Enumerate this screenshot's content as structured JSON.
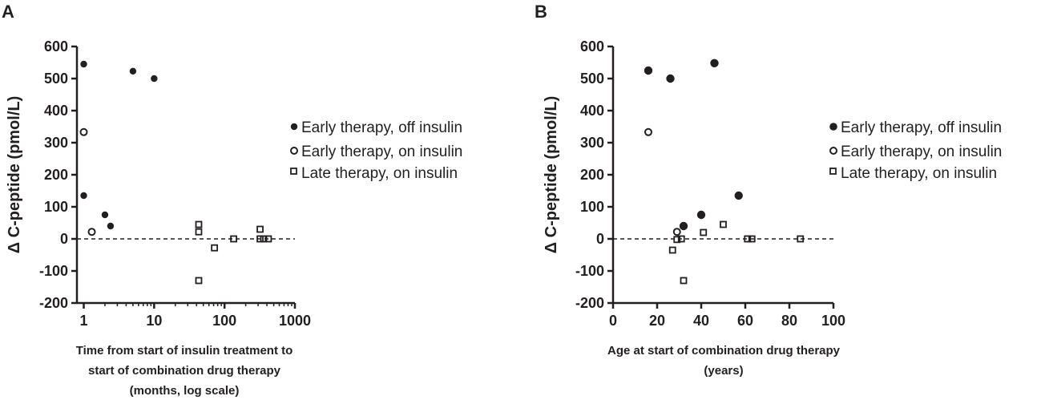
{
  "colors": {
    "ink": "#231f20",
    "background": "#ffffff"
  },
  "chart_data": [
    {
      "panel": "A",
      "type": "scatter",
      "xscale": "log",
      "xlim": [
        0.8,
        1000
      ],
      "ylim": [
        -200,
        600
      ],
      "xticks": [
        1,
        10,
        100,
        1000
      ],
      "xtick_labels": [
        "1",
        "10",
        "100",
        "1000"
      ],
      "yticks": [
        -200,
        -100,
        0,
        100,
        200,
        300,
        400,
        500,
        600
      ],
      "ytick_labels": [
        "-200",
        "-100",
        "0",
        "100",
        "200",
        "300",
        "400",
        "500",
        "600"
      ],
      "ylabel": "Δ C-peptide (pmol/L)",
      "xlabel_lines": [
        "Time from start of insulin treatment to",
        "start of combination drug therapy",
        "(months, log scale)"
      ],
      "reference_line": 0,
      "legend_position": "right",
      "series": [
        {
          "name": "Early therapy, off insulin",
          "marker": "filled-circle",
          "points": [
            [
              1,
              545
            ],
            [
              1,
              135
            ],
            [
              2,
              75
            ],
            [
              2.4,
              40
            ],
            [
              5,
              523
            ],
            [
              10,
              500
            ]
          ]
        },
        {
          "name": "Early therapy, on insulin",
          "marker": "open-circle",
          "points": [
            [
              1,
              333
            ],
            [
              1.3,
              22
            ]
          ]
        },
        {
          "name": "Late therapy, on insulin",
          "marker": "open-square",
          "points": [
            [
              43,
              45
            ],
            [
              43,
              22
            ],
            [
              43,
              -130
            ],
            [
              72,
              -28
            ],
            [
              135,
              0
            ],
            [
              320,
              30
            ],
            [
              320,
              0
            ],
            [
              360,
              0
            ],
            [
              420,
              0
            ]
          ]
        }
      ]
    },
    {
      "panel": "B",
      "type": "scatter",
      "xscale": "linear",
      "xlim": [
        0,
        100
      ],
      "ylim": [
        -200,
        600
      ],
      "xticks": [
        0,
        20,
        40,
        60,
        80,
        100
      ],
      "xtick_labels": [
        "0",
        "20",
        "40",
        "60",
        "80",
        "100"
      ],
      "yticks": [
        -200,
        -100,
        0,
        100,
        200,
        300,
        400,
        500,
        600
      ],
      "ytick_labels": [
        "-200",
        "-100",
        "0",
        "100",
        "200",
        "300",
        "400",
        "500",
        "600"
      ],
      "ylabel": "Δ C-peptide (pmol/L)",
      "xlabel_lines": [
        "Age at start of combination drug therapy",
        "(years)"
      ],
      "reference_line": 0,
      "legend_position": "right",
      "series": [
        {
          "name": "Early therapy, off insulin",
          "marker": "filled-circle",
          "points": [
            [
              16,
              525
            ],
            [
              26,
              500
            ],
            [
              46,
              548
            ],
            [
              57,
              135
            ],
            [
              40,
              75
            ],
            [
              32,
              40
            ]
          ]
        },
        {
          "name": "Early therapy, on insulin",
          "marker": "open-circle",
          "points": [
            [
              16,
              333
            ],
            [
              29,
              22
            ]
          ]
        },
        {
          "name": "Late therapy, on insulin",
          "marker": "open-square",
          "points": [
            [
              27,
              -35
            ],
            [
              29,
              -2
            ],
            [
              31,
              0
            ],
            [
              32,
              -130
            ],
            [
              41,
              20
            ],
            [
              50,
              45
            ],
            [
              61,
              0
            ],
            [
              63,
              0
            ],
            [
              85,
              0
            ]
          ]
        }
      ]
    }
  ]
}
